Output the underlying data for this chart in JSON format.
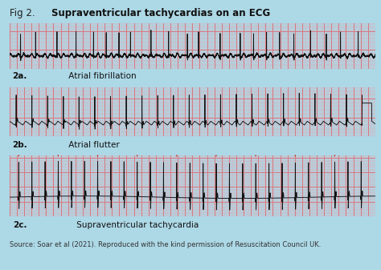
{
  "title_prefix": "Fig 2. ",
  "title_bold": "Supraventricular tachycardias on an ECG",
  "background_color": "#add8e6",
  "ecg_bg_color": "#f7c5cc",
  "ecg_line_color": "#111111",
  "grid_minor_color": "#e8a0a8",
  "grid_major_color": "#d87880",
  "label_2a_bold": "2a.",
  "label_2a_text": " Atrial fibrillation",
  "label_2b_bold": "2b.",
  "label_2b_text": " Atrial flutter",
  "label_2c_bold": "2c.",
  "label_2c_text": " Supraventricular tachycardia",
  "source_text": "Source: Soar et al (2021). Reproduced with the kind permission of Resuscitation Council UK.",
  "label_fontsize": 7.5,
  "source_fontsize": 6.0,
  "title_fontsize": 8.5,
  "svt_tick_color": "#cc2222"
}
